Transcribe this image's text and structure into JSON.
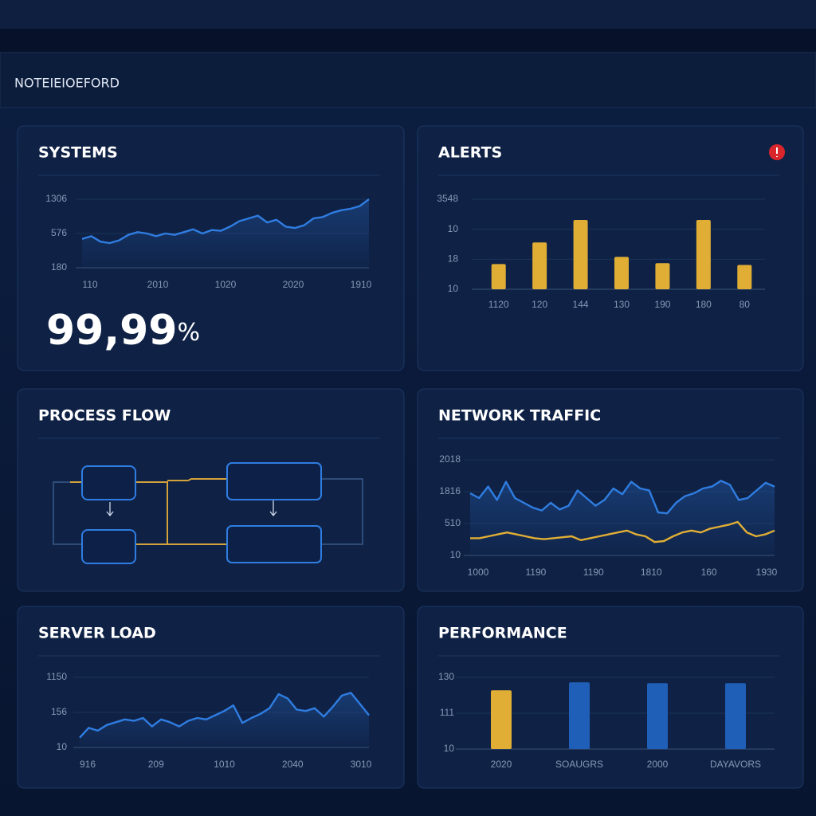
{
  "header": {
    "title": "NOTEIEIOEFORD"
  },
  "panels": [
    {
      "type": "line",
      "title": "SYSTEMS",
      "ylim": [
        0,
        100
      ],
      "y_labels": [
        "1306",
        "576",
        "180"
      ],
      "x_labels": [
        "110",
        "2010",
        "1020",
        "2020",
        "1910"
      ],
      "series": [
        {
          "color": "#2f7de1",
          "values": [
            42,
            46,
            38,
            36,
            40,
            48,
            52,
            50,
            46,
            50,
            48,
            52,
            56,
            50,
            55,
            54,
            60,
            68,
            72,
            76,
            66,
            70,
            60,
            58,
            62,
            72,
            74,
            80,
            84,
            86,
            90,
            100
          ]
        }
      ],
      "stat": "99,99",
      "stat_unit": "%"
    },
    {
      "type": "bar",
      "title": "ALERTS",
      "ylim": [
        0,
        100
      ],
      "color": "#e0ae35",
      "y_labels": [
        "3548",
        "10",
        "18",
        "10"
      ],
      "categories": [
        "1120",
        "120",
        "144",
        "130",
        "190",
        "180",
        "80"
      ],
      "values": [
        28,
        52,
        77,
        36,
        29,
        77,
        27
      ]
    },
    {
      "type": "diagram",
      "title": "PROCESS FLOW"
    },
    {
      "type": "line",
      "title": "NETWORK TRAFFIC",
      "ylim": [
        0,
        100
      ],
      "y_labels": [
        "2018",
        "1816",
        "510",
        "10"
      ],
      "x_labels": [
        "1000",
        "1190",
        "1190",
        "1810",
        "160",
        "1930"
      ],
      "series": [
        {
          "color": "#2f7de1",
          "values": [
            65,
            60,
            72,
            58,
            77,
            60,
            55,
            50,
            47,
            55,
            48,
            52,
            68,
            60,
            52,
            58,
            70,
            64,
            77,
            70,
            68,
            45,
            44,
            55,
            62,
            65,
            70,
            72,
            78,
            74,
            58,
            60,
            68,
            76,
            72
          ]
        },
        {
          "color": "#e0ae35",
          "values": [
            18,
            18,
            20,
            22,
            24,
            22,
            20,
            18,
            17,
            18,
            19,
            20,
            16,
            18,
            20,
            22,
            24,
            26,
            22,
            20,
            14,
            15,
            20,
            24,
            26,
            24,
            28,
            30,
            32,
            35,
            24,
            20,
            22,
            26
          ]
        }
      ]
    },
    {
      "type": "line",
      "title": "SERVER LOAD",
      "ylim": [
        0,
        100
      ],
      "y_labels": [
        "1150",
        "156",
        "10"
      ],
      "x_labels": [
        "916",
        "209",
        "1010",
        "2040",
        "3010"
      ],
      "series": [
        {
          "color": "#2f7de1",
          "values": [
            14,
            28,
            24,
            32,
            36,
            40,
            38,
            42,
            30,
            40,
            36,
            30,
            38,
            42,
            40,
            46,
            52,
            60,
            35,
            42,
            48,
            56,
            76,
            70,
            54,
            52,
            56,
            44,
            58,
            74,
            78,
            62,
            46
          ]
        }
      ]
    },
    {
      "type": "bar",
      "title": "PERFORMANCE",
      "ylim": [
        0,
        100
      ],
      "y_labels": [
        "130",
        "111",
        "10"
      ],
      "categories": [
        "2020",
        "SOAUGRS",
        "2000",
        "DAYAVORS"
      ],
      "colors": [
        "#e0ae35",
        "#1f5fb8",
        "#1f5fb8",
        "#1f5fb8"
      ],
      "values": [
        82,
        93,
        92,
        92
      ]
    }
  ]
}
